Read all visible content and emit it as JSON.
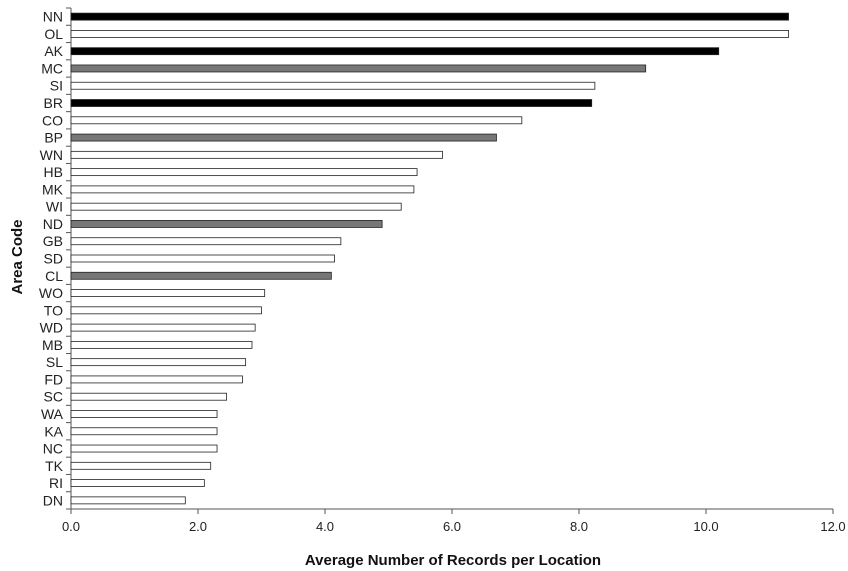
{
  "chart_data": {
    "type": "bar",
    "orientation": "horizontal",
    "xlabel": "Average Number of Records per Location",
    "ylabel": "Area Code",
    "xlim": [
      0,
      12
    ],
    "xticks": [
      "0.0",
      "2.0",
      "4.0",
      "6.0",
      "8.0",
      "10.0",
      "12.0"
    ],
    "grid": false,
    "categories": [
      "NN",
      "OL",
      "AK",
      "MC",
      "SI",
      "BR",
      "CO",
      "BP",
      "WN",
      "HB",
      "MK",
      "WI",
      "ND",
      "GB",
      "SD",
      "CL",
      "WO",
      "TO",
      "WD",
      "MB",
      "SL",
      "FD",
      "SC",
      "WA",
      "KA",
      "NC",
      "TK",
      "RI",
      "DN"
    ],
    "values": [
      11.3,
      11.3,
      10.2,
      9.05,
      8.25,
      8.2,
      7.1,
      6.7,
      5.85,
      5.45,
      5.4,
      5.2,
      4.9,
      4.25,
      4.15,
      4.1,
      3.05,
      3.0,
      2.9,
      2.85,
      2.75,
      2.7,
      2.45,
      2.3,
      2.3,
      2.3,
      2.2,
      2.1,
      1.8
    ],
    "bar_colors": [
      "#000000",
      "#ffffff",
      "#000000",
      "#777777",
      "#ffffff",
      "#000000",
      "#ffffff",
      "#777777",
      "#ffffff",
      "#ffffff",
      "#ffffff",
      "#ffffff",
      "#777777",
      "#ffffff",
      "#ffffff",
      "#777777",
      "#ffffff",
      "#ffffff",
      "#ffffff",
      "#ffffff",
      "#ffffff",
      "#ffffff",
      "#ffffff",
      "#ffffff",
      "#ffffff",
      "#ffffff",
      "#ffffff",
      "#ffffff",
      "#ffffff"
    ]
  }
}
